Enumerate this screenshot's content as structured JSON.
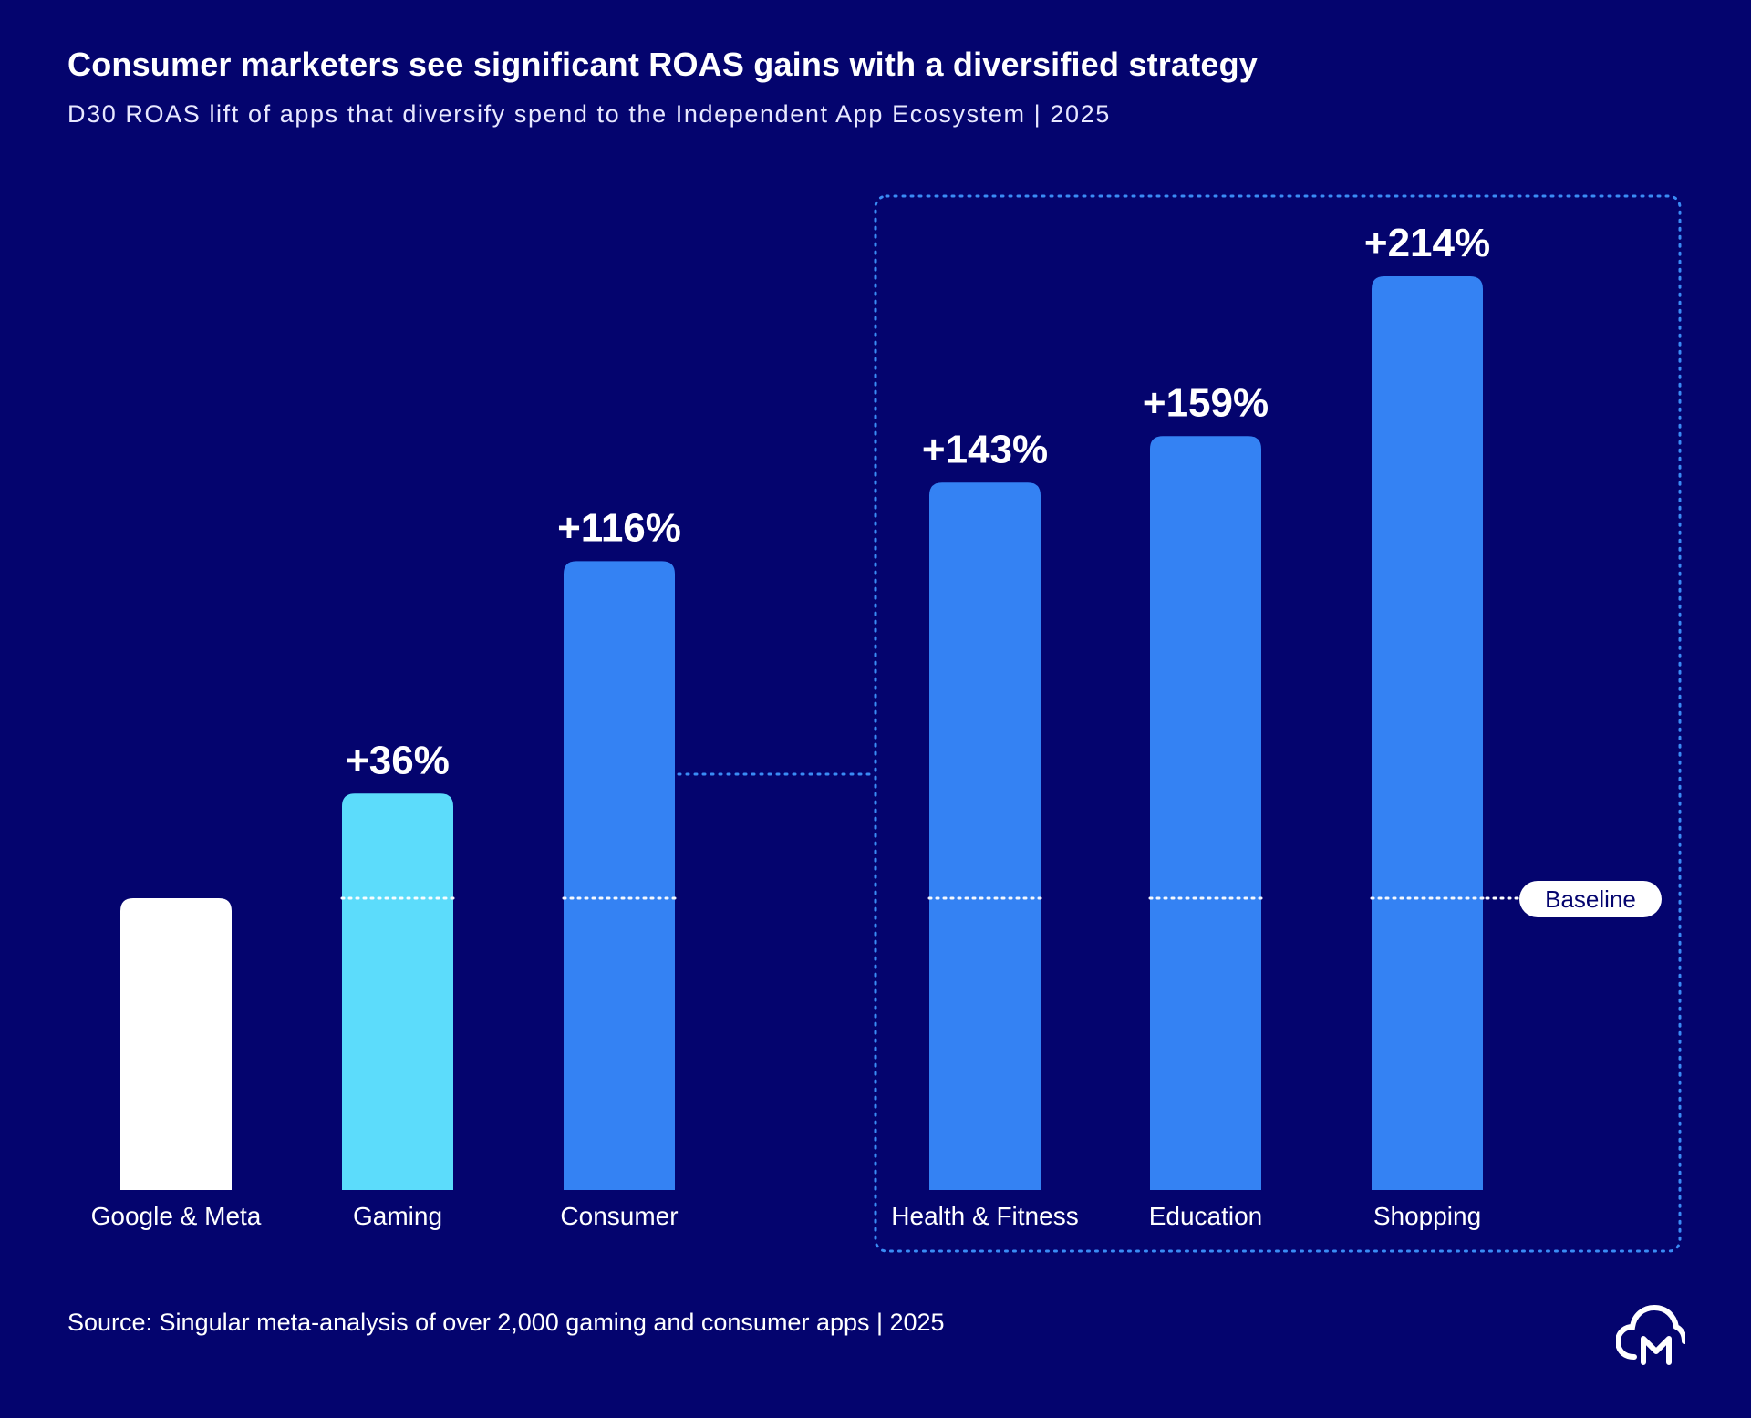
{
  "header": {
    "title": "Consumer marketers see significant ROAS gains with a diversified strategy",
    "subtitle": "D30 ROAS lift of apps that diversify spend to the Independent App Ecosystem | 2025"
  },
  "footer": {
    "source": "Source: Singular meta-analysis of over 2,000 gaming and consumer apps | 2025"
  },
  "colors": {
    "background": "#04046e",
    "baseline_bar": "#ffffff",
    "gaming_bar": "#5cdcfb",
    "consumer_bar": "#3482f3",
    "highlight_border": "#3a8cf5"
  },
  "chart_data": {
    "type": "bar",
    "title": "Consumer marketers see significant ROAS gains with a diversified strategy",
    "subtitle": "D30 ROAS lift of apps that diversify spend to the Independent App Ecosystem | 2025",
    "categories": [
      "Google & Meta",
      "Gaming",
      "Consumer",
      "Health & Fitness",
      "Education",
      "Shopping"
    ],
    "values": [
      0,
      36,
      116,
      143,
      159,
      214
    ],
    "value_labels": [
      "",
      "+36%",
      "+116%",
      "+143%",
      "+159%",
      "+214%"
    ],
    "bar_colors": [
      "#ffffff",
      "#5cdcfb",
      "#3482f3",
      "#3482f3",
      "#3482f3",
      "#3482f3"
    ],
    "unit": "% D30 ROAS lift vs. baseline",
    "baseline_label": "Baseline",
    "highlight_group": [
      "Health & Fitness",
      "Education",
      "Shopping"
    ],
    "connector_from": "Consumer",
    "xlabel": "",
    "ylabel": "",
    "grid": false,
    "legend": "none"
  },
  "logo": {
    "name": "cloud-m-logo-icon"
  }
}
